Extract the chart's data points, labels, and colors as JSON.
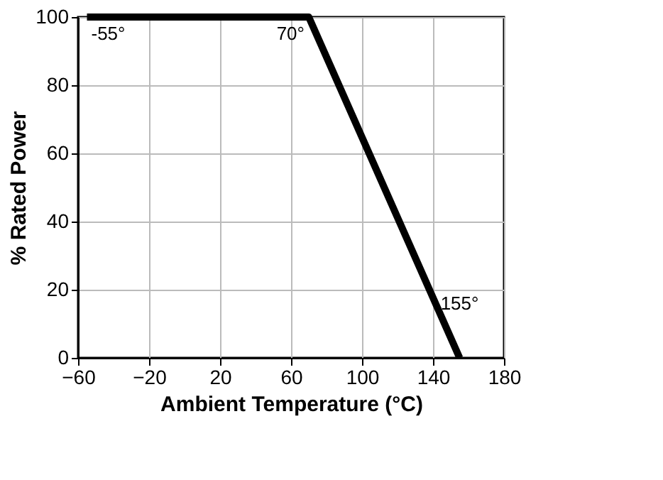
{
  "chart_data": {
    "type": "line",
    "xlabel": "Ambient Temperature (°C)",
    "ylabel": "% Rated Power",
    "x": [
      -55,
      70,
      155
    ],
    "series": [
      {
        "color": "#000000",
        "values": [
          100,
          100,
          0
        ]
      }
    ],
    "xlim": [
      -60,
      180
    ],
    "xticks": [
      -60,
      -20,
      20,
      60,
      100,
      140,
      180
    ],
    "ylim": [
      0,
      100
    ],
    "yticks": [
      0,
      20,
      40,
      60,
      80,
      100
    ],
    "grid": true,
    "line_style": "solid",
    "marker": "none",
    "annotations": [
      {
        "text": "-55°",
        "x": -55,
        "y": 100
      },
      {
        "text": "70°",
        "x": 70,
        "y": 100
      },
      {
        "text": "155°",
        "x": 155,
        "y": 0
      }
    ]
  }
}
